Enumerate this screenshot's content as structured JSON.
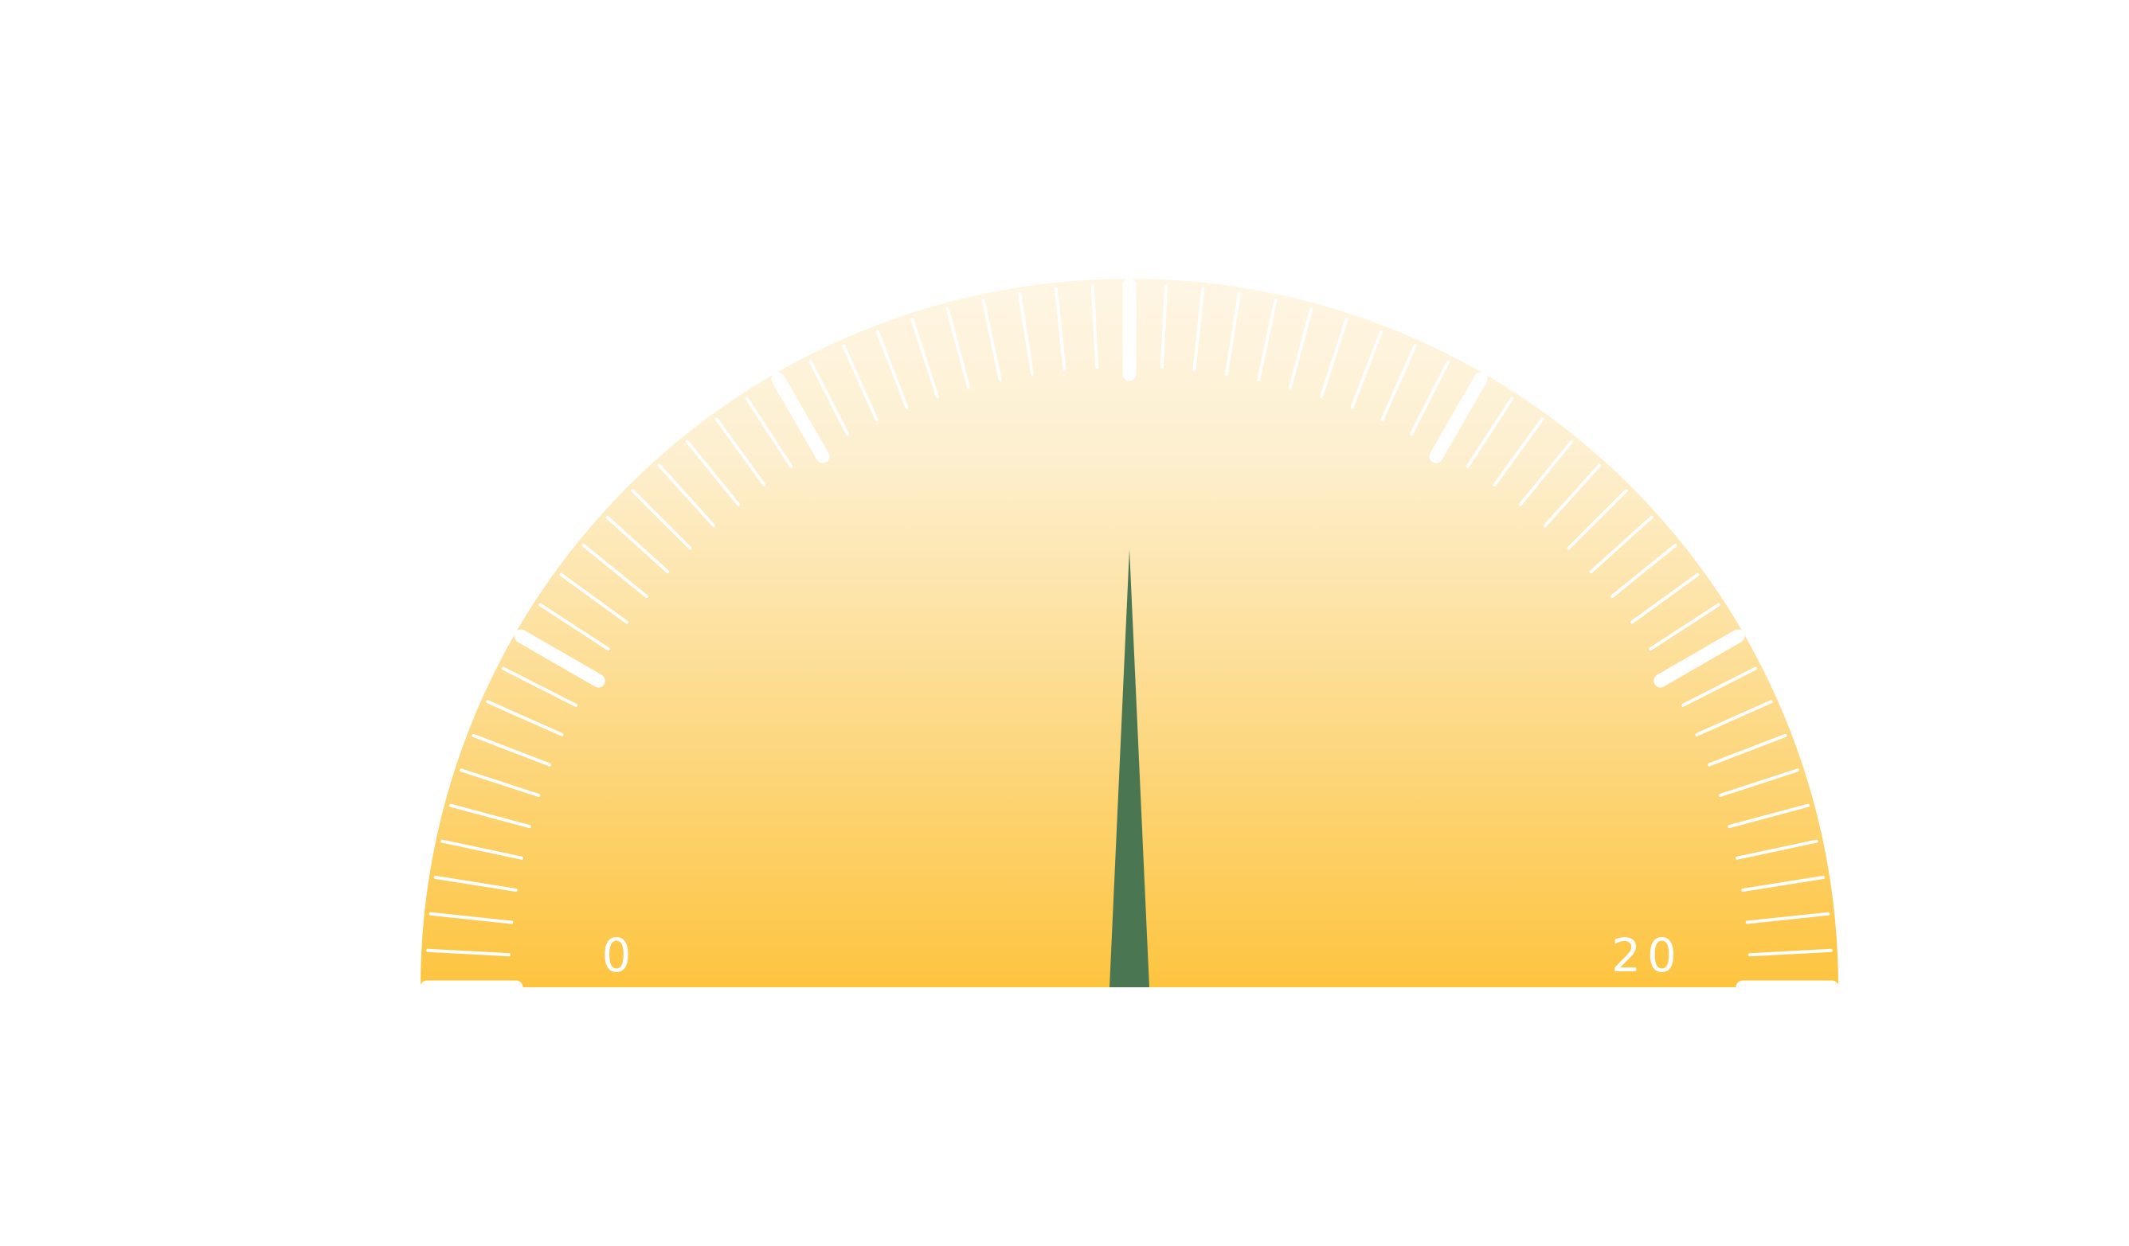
{
  "chart_data": {
    "type": "gauge",
    "min": 0,
    "max": 20,
    "value": 10,
    "labels": [
      {
        "text": "0",
        "value": 0
      },
      {
        "text": "20",
        "value": 20
      }
    ],
    "major_tick_count": 7,
    "minor_ticks_per_major": 10,
    "colors": {
      "fill_top": "#fef6e4",
      "fill_bottom": "#fdc43f",
      "needle": "#4a7752",
      "ticks": "#ffffff"
    }
  }
}
